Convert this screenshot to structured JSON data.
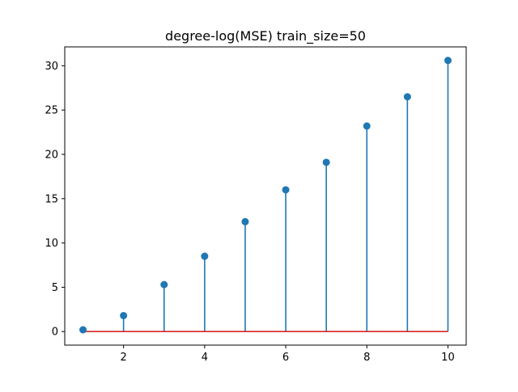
{
  "chart_data": {
    "type": "stem",
    "title": "degree-log(MSE) train_size=50",
    "xlabel": "",
    "ylabel": "",
    "x": [
      1,
      2,
      3,
      4,
      5,
      6,
      7,
      8,
      9,
      10
    ],
    "y": [
      0.2,
      1.8,
      5.3,
      8.5,
      12.4,
      16.0,
      19.1,
      23.2,
      26.5,
      30.6
    ],
    "baseline": 0,
    "xlim": [
      0.55,
      10.45
    ],
    "ylim": [
      -1.53,
      32.13
    ],
    "xticks": [
      2,
      4,
      6,
      8,
      10
    ],
    "yticks": [
      0,
      5,
      10,
      15,
      20,
      25,
      30
    ],
    "grid": false,
    "legend": "none",
    "colors": {
      "stem": "#1f77b4",
      "marker": "#1f77b4",
      "baseline": "#d62728",
      "axes": "#000000"
    }
  }
}
